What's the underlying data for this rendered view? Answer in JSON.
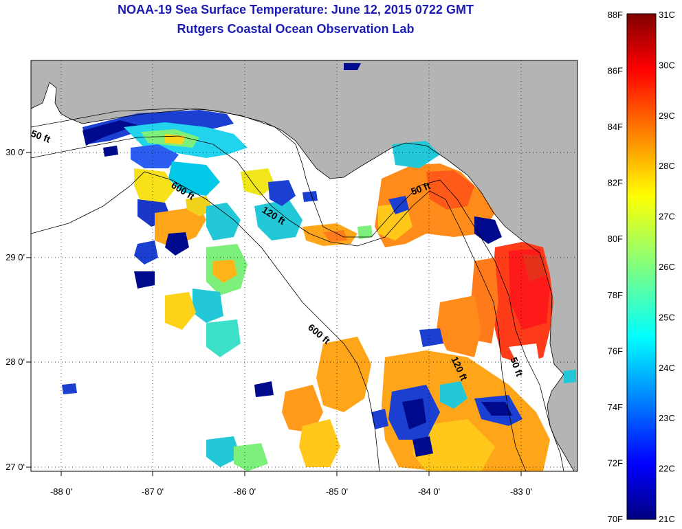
{
  "title": {
    "line1": "NOAA-19 Sea Surface Temperature:  June 12, 2015 0722 GMT",
    "line2": "Rutgers Coastal Ocean Observation Lab"
  },
  "map": {
    "lon_range": [
      -88.33,
      -82.42
    ],
    "lat_range": [
      26.98,
      30.88
    ],
    "x_ticks": [
      {
        "value": -88,
        "label": "-88 0'"
      },
      {
        "value": -87,
        "label": "-87 0'"
      },
      {
        "value": -86,
        "label": "-86 0'"
      },
      {
        "value": -85,
        "label": "-85 0'"
      },
      {
        "value": -84,
        "label": "-84 0'"
      },
      {
        "value": -83,
        "label": "-83 0'"
      }
    ],
    "y_ticks": [
      {
        "value": 30,
        "label": "30 0'"
      },
      {
        "value": 29,
        "label": "29 0'"
      },
      {
        "value": 28,
        "label": "28 0'"
      },
      {
        "value": 27,
        "label": "27 0'"
      }
    ],
    "land_color": "#b4b4b4",
    "no_data_color": "#ffffff",
    "grid": "dotted",
    "depth_contours": [
      "50 ft",
      "120 ft",
      "600 ft"
    ],
    "contour_labels": [
      {
        "text": "50 ft"
      },
      {
        "text": "600 ft"
      },
      {
        "text": "120 ft"
      },
      {
        "text": "50 ft"
      },
      {
        "text": "600 ft"
      },
      {
        "text": "120 ft"
      },
      {
        "text": "50 ft"
      }
    ]
  },
  "colorbar": {
    "f_labels": [
      "88F",
      "86F",
      "84F",
      "82F",
      "80F",
      "78F",
      "76F",
      "74F",
      "72F",
      "70F"
    ],
    "c_labels": [
      "31C",
      "30C",
      "29C",
      "28C",
      "27C",
      "26C",
      "25C",
      "24C",
      "23C",
      "22C",
      "21C"
    ],
    "f_range": [
      70,
      88
    ],
    "c_range": [
      21,
      31
    ],
    "colormap": "jet"
  }
}
